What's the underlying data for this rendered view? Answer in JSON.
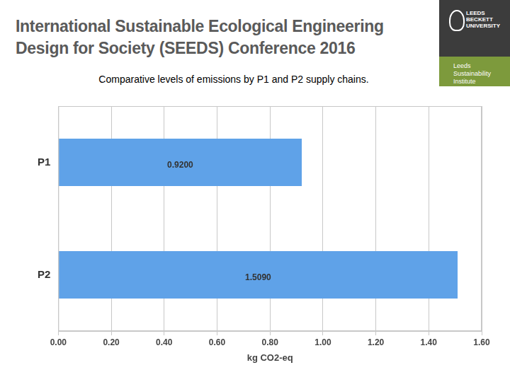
{
  "header": {
    "title_lines": [
      "International Sustainable Ecological Engineering",
      "Design for Society (SEEDS) Conference 2016"
    ],
    "logo_lines": [
      "LEEDS",
      "BECKETT",
      "UNIVERSITY"
    ],
    "institute_lines": [
      "Leeds Sustainability",
      "Institute"
    ]
  },
  "chart_data": {
    "type": "bar",
    "orientation": "horizontal",
    "title": "Comparative levels of emissions by P1 and P2 supply chains.",
    "categories": [
      "P1",
      "P2"
    ],
    "values": [
      0.92,
      1.509
    ],
    "value_labels": [
      "0.9200",
      "1.5090"
    ],
    "data_labels": true,
    "color": "#5fa2e8",
    "xlabel": "kg CO2-eq",
    "xlim": [
      0,
      1.6
    ],
    "xticks": [
      {
        "value": 0,
        "label": "0.00"
      },
      {
        "value": 0.2,
        "label": "0.20"
      },
      {
        "value": 0.4,
        "label": "0.40"
      },
      {
        "value": 0.6,
        "label": "0.60"
      },
      {
        "value": 0.8,
        "label": "0.80"
      },
      {
        "value": 1,
        "label": "1.00"
      },
      {
        "value": 1.2,
        "label": "1.20"
      },
      {
        "value": 1.4,
        "label": "1.40"
      },
      {
        "value": 1.6,
        "label": "1.60"
      }
    ],
    "grid": true
  }
}
